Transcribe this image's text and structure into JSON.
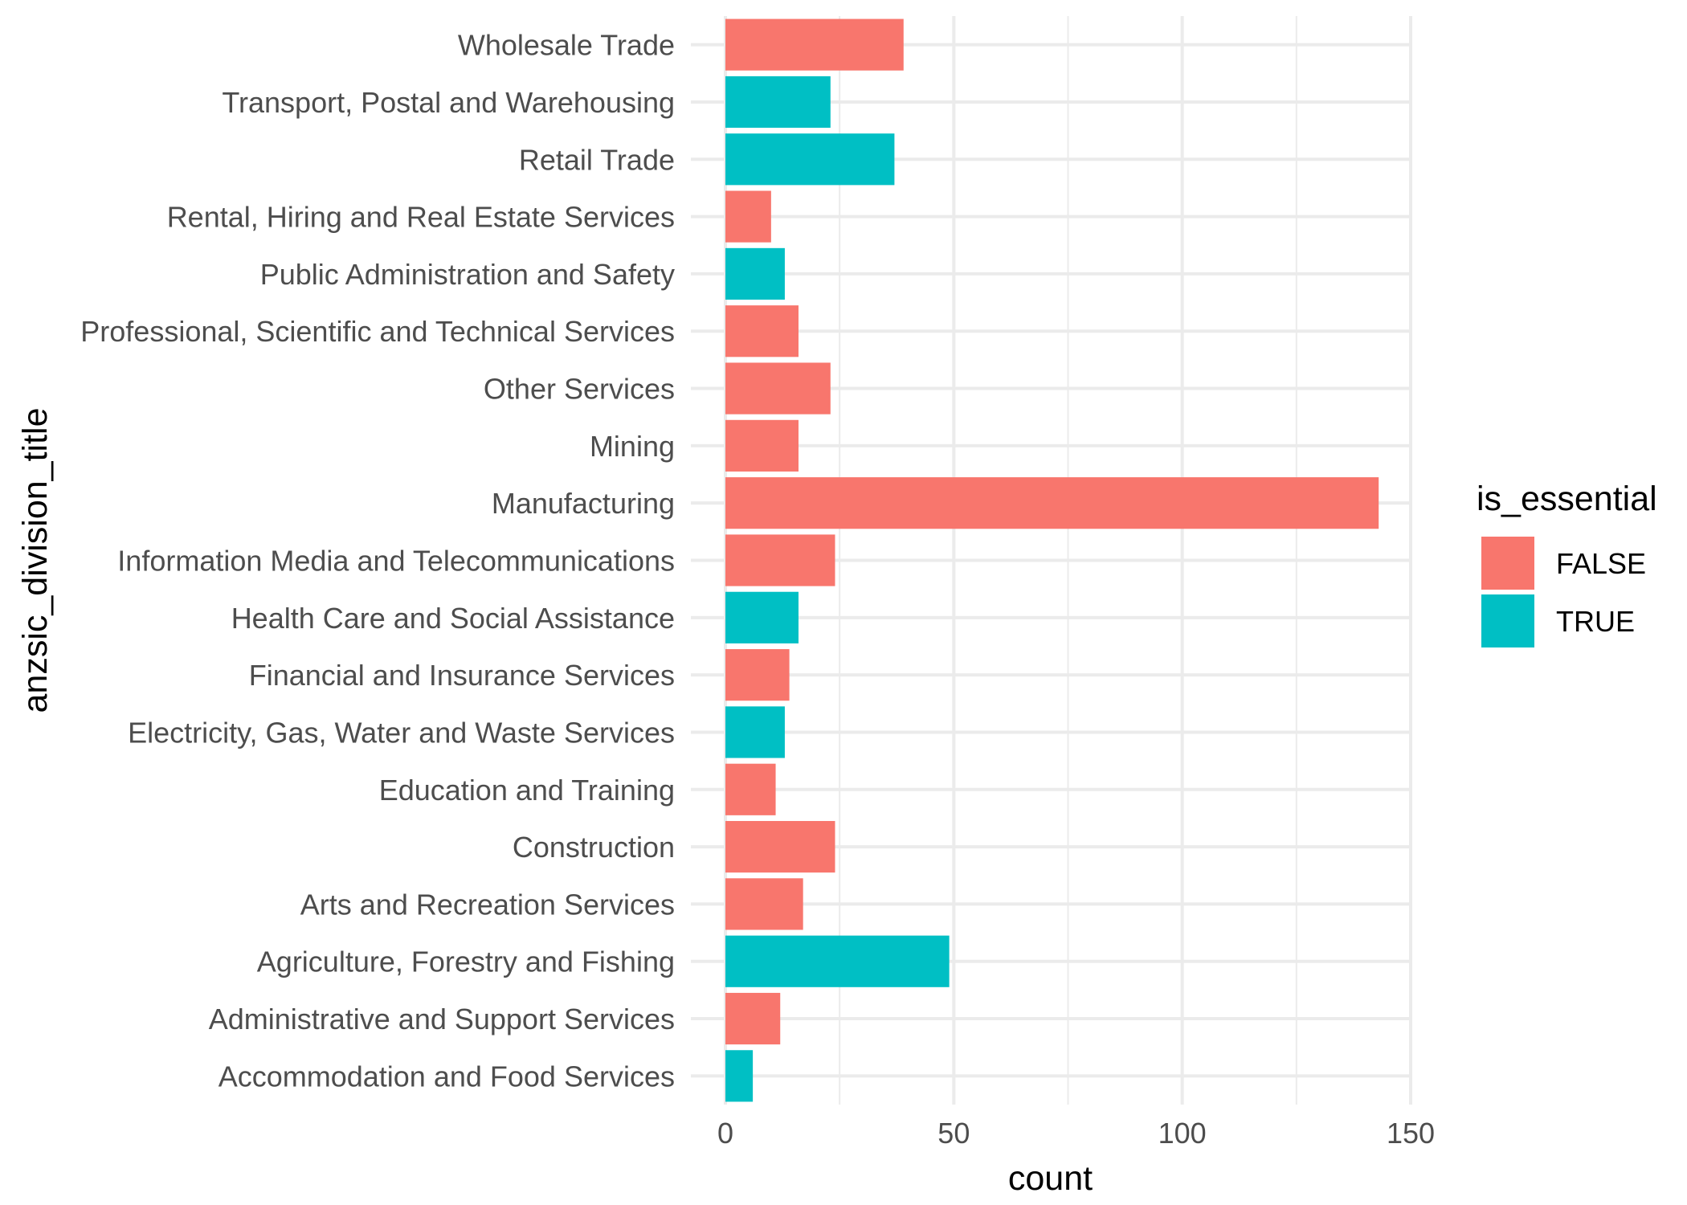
{
  "chart_data": {
    "type": "bar",
    "orientation": "horizontal",
    "xlabel": "count",
    "ylabel": "anzsic_division_title",
    "xlim": [
      0,
      150
    ],
    "x_ticks": [
      0,
      50,
      100,
      150
    ],
    "x_tick_labels": [
      "0",
      "50",
      "100",
      "150"
    ],
    "grid": true,
    "legend": {
      "title": "is_essential",
      "position": "right",
      "entries": [
        {
          "label": "FALSE",
          "color": "#F8766D"
        },
        {
          "label": "TRUE",
          "color": "#00BFC4"
        }
      ]
    },
    "categories": [
      "Wholesale Trade",
      "Transport, Postal and Warehousing",
      "Retail Trade",
      "Rental, Hiring and Real Estate Services",
      "Public Administration and Safety",
      "Professional, Scientific and Technical Services",
      "Other Services",
      "Mining",
      "Manufacturing",
      "Information Media and Telecommunications",
      "Health Care and Social Assistance",
      "Financial and Insurance Services",
      "Electricity, Gas, Water and Waste Services",
      "Education and Training",
      "Construction",
      "Arts and Recreation Services",
      "Agriculture, Forestry and Fishing",
      "Administrative and Support Services",
      "Accommodation and Food Services"
    ],
    "values": [
      39,
      23,
      37,
      10,
      13,
      16,
      23,
      16,
      143,
      24,
      16,
      14,
      13,
      11,
      24,
      17,
      49,
      12,
      6
    ],
    "is_essential": [
      "FALSE",
      "TRUE",
      "TRUE",
      "FALSE",
      "TRUE",
      "FALSE",
      "FALSE",
      "FALSE",
      "FALSE",
      "FALSE",
      "TRUE",
      "FALSE",
      "TRUE",
      "FALSE",
      "FALSE",
      "FALSE",
      "TRUE",
      "FALSE",
      "TRUE"
    ]
  }
}
